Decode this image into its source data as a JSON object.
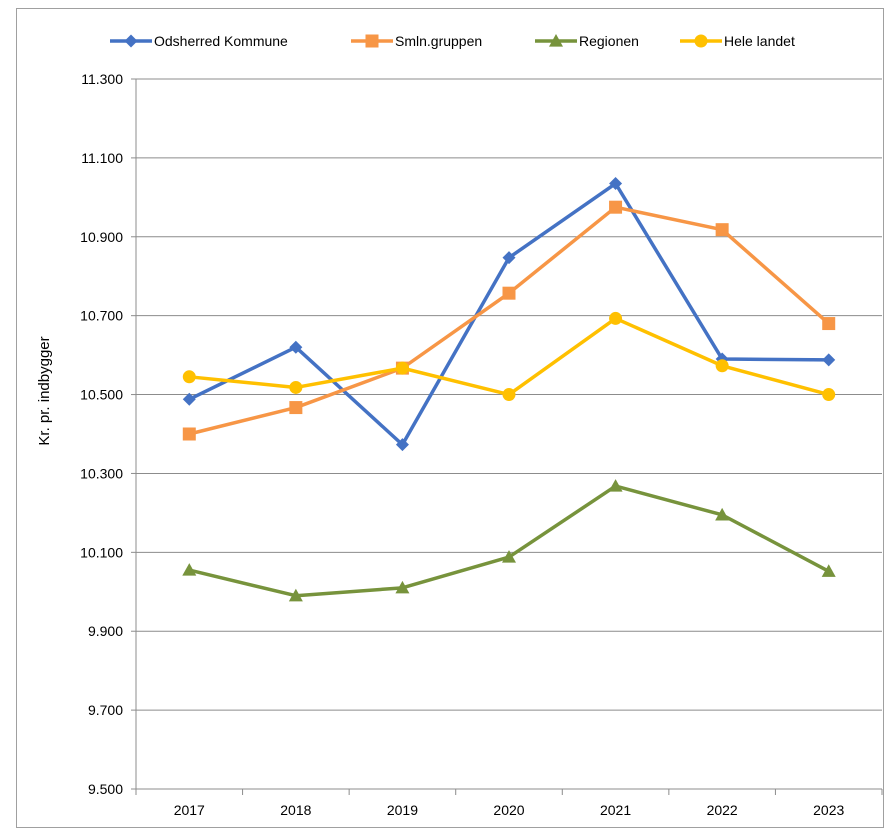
{
  "chart_data": {
    "type": "line",
    "title": "",
    "xlabel": "",
    "ylabel": "Kr. pr. indbygger",
    "categories": [
      "2017",
      "2018",
      "2019",
      "2020",
      "2021",
      "2022",
      "2023"
    ],
    "ylim": [
      9500,
      11300
    ],
    "yticks": [
      9500,
      9700,
      9900,
      10100,
      10300,
      10500,
      10700,
      10900,
      11100,
      11300
    ],
    "ytick_labels": [
      "9.500",
      "9.700",
      "9.900",
      "10.100",
      "10.300",
      "10.500",
      "10.700",
      "10.900",
      "11.100",
      "11.300"
    ],
    "grid": true,
    "legend_position": "top",
    "series": [
      {
        "name": "Odsherred Kommune",
        "color": "#4472C4",
        "marker": "diamond",
        "values": [
          10488,
          10620,
          10373,
          10847,
          11035,
          10590,
          10588
        ]
      },
      {
        "name": "Smln.gruppen",
        "color": "#F79646",
        "marker": "square",
        "values": [
          10400,
          10467,
          10567,
          10757,
          10975,
          10918,
          10680
        ]
      },
      {
        "name": "Regionen",
        "color": "#77933C",
        "marker": "triangle",
        "values": [
          10055,
          9990,
          10010,
          10088,
          10268,
          10195,
          10052
        ]
      },
      {
        "name": "Hele landet",
        "color": "#FFC000",
        "marker": "circle",
        "values": [
          10545,
          10518,
          10567,
          10500,
          10693,
          10573,
          10500
        ]
      }
    ]
  }
}
